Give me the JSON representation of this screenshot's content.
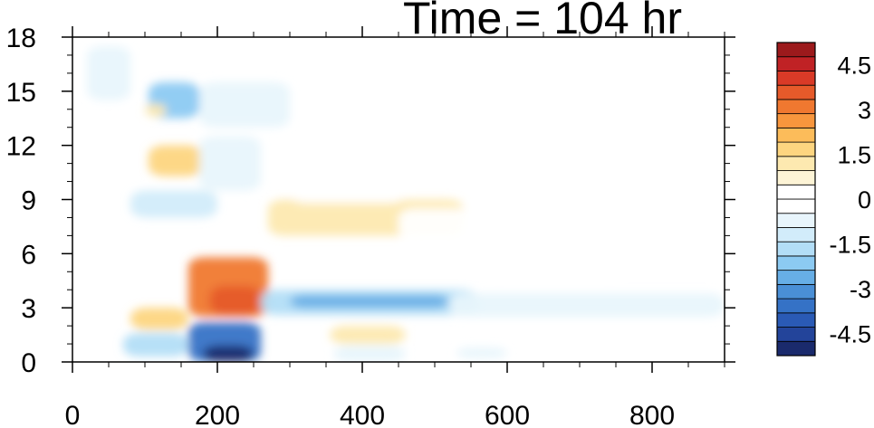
{
  "chart_data": {
    "type": "heatmap",
    "title": "Time = 104 hr",
    "xlabel": "",
    "ylabel": "",
    "xlim": [
      0,
      900
    ],
    "ylim": [
      0,
      18
    ],
    "x_ticks": [
      0,
      200,
      400,
      600,
      800
    ],
    "x_tick_labels": [
      "0",
      "200",
      "400",
      "600",
      "800"
    ],
    "y_ticks": [
      0,
      3,
      6,
      9,
      12,
      15,
      18
    ],
    "y_tick_labels": [
      "0",
      "3",
      "6",
      "9",
      "12",
      "15",
      "18"
    ],
    "colorbar": {
      "levels": [
        -5.25,
        -4.75,
        -4.25,
        -3.75,
        -3.25,
        -2.75,
        -2.25,
        -1.75,
        -1.25,
        -0.75,
        -0.25,
        0.25,
        0.75,
        1.25,
        1.75,
        2.25,
        2.75,
        3.25,
        3.75,
        4.25,
        4.75,
        5.25
      ],
      "colors": [
        "#1a2a6c",
        "#23449a",
        "#2a5ab5",
        "#3572c6",
        "#4a8fd6",
        "#67aee6",
        "#8ccaf2",
        "#b3def7",
        "#d2ecfa",
        "#e8f5fc",
        "#ffffff",
        "#ffffff",
        "#fdf4d6",
        "#fde9b0",
        "#fdd580",
        "#fcbc5a",
        "#f8963d",
        "#f07830",
        "#e65a2a",
        "#d93a27",
        "#c02225",
        "#9c1a1c"
      ],
      "tick_values": [
        4.5,
        3,
        1.5,
        0,
        -1.5,
        -3,
        -4.5
      ],
      "tick_labels": [
        "4.5",
        "3",
        "1.5",
        "0",
        "-1.5",
        "-3",
        "-4.5"
      ]
    },
    "features": [
      {
        "x": [
          160,
          270
        ],
        "y": [
          2.5,
          5.8
        ],
        "value": 3.5
      },
      {
        "x": [
          190,
          260
        ],
        "y": [
          2.6,
          4.2
        ],
        "value": 4.2
      },
      {
        "x": [
          160,
          260
        ],
        "y": [
          0,
          2.2
        ],
        "value": -3.5
      },
      {
        "x": [
          180,
          250
        ],
        "y": [
          0,
          0.9
        ],
        "value": -5.0
      },
      {
        "x": [
          80,
          160
        ],
        "y": [
          1.8,
          3.0
        ],
        "value": 1.8
      },
      {
        "x": [
          70,
          160
        ],
        "y": [
          0.3,
          1.6
        ],
        "value": -1.5
      },
      {
        "x": [
          260,
          560
        ],
        "y": [
          2.6,
          4.0
        ],
        "value": -1.6
      },
      {
        "x": [
          300,
          520
        ],
        "y": [
          3.0,
          3.7
        ],
        "value": -2.4
      },
      {
        "x": [
          520,
          900
        ],
        "y": [
          2.5,
          3.8
        ],
        "value": -0.6
      },
      {
        "x": [
          355,
          460
        ],
        "y": [
          1.0,
          2.0
        ],
        "value": 1.6
      },
      {
        "x": [
          360,
          460
        ],
        "y": [
          0,
          0.9
        ],
        "value": -0.7
      },
      {
        "x": [
          270,
          540
        ],
        "y": [
          7.0,
          9.0
        ],
        "value": 1.3
      },
      {
        "x": [
          450,
          560
        ],
        "y": [
          6.8,
          8.5
        ],
        "value": 0.6
      },
      {
        "x": [
          300,
          460
        ],
        "y": [
          8.8,
          11.0
        ],
        "value": 0.6
      },
      {
        "x": [
          570,
          760
        ],
        "y": [
          4.8,
          6.2
        ],
        "value": 0.6
      },
      {
        "x": [
          105,
          180
        ],
        "y": [
          10.3,
          12.0
        ],
        "value": 2.0
      },
      {
        "x": [
          105,
          175
        ],
        "y": [
          13.5,
          15.5
        ],
        "value": -1.9
      },
      {
        "x": [
          100,
          130
        ],
        "y": [
          13.6,
          14.3
        ],
        "value": 1.5
      },
      {
        "x": [
          80,
          200
        ],
        "y": [
          8.0,
          9.5
        ],
        "value": -1.0
      },
      {
        "x": [
          175,
          260
        ],
        "y": [
          9.5,
          12.5
        ],
        "value": -0.7
      },
      {
        "x": [
          175,
          300
        ],
        "y": [
          13.0,
          15.5
        ],
        "value": -0.7
      },
      {
        "x": [
          20,
          80
        ],
        "y": [
          14.5,
          17.5
        ],
        "value": -0.6
      },
      {
        "x": [
          460,
          520
        ],
        "y": [
          14.5,
          16.8
        ],
        "value": 0.5
      },
      {
        "x": [
          660,
          760
        ],
        "y": [
          0.4,
          1.2
        ],
        "value": 0.6
      },
      {
        "x": [
          530,
          600
        ],
        "y": [
          0.2,
          0.8
        ],
        "value": -0.6
      }
    ]
  }
}
